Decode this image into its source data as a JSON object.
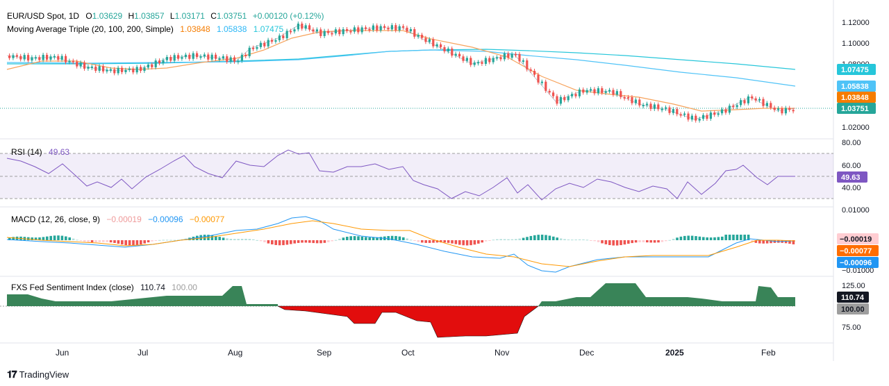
{
  "header": {
    "symbol": "EUR/USD Spot, 1D",
    "ohlc": {
      "o_label": "O",
      "o": "1.03629",
      "h_label": "H",
      "h": "1.03857",
      "l_label": "L",
      "l": "1.03171",
      "c_label": "C",
      "c": "1.03751",
      "change": "+0.00120 (+0.12%)"
    },
    "ma_label": "Moving Average Triple (20, 100, 200, Simple)",
    "ma_values": [
      "1.03848",
      "1.05838",
      "1.07475"
    ]
  },
  "rsi": {
    "label": "RSI (14)",
    "value": "49.63"
  },
  "macd": {
    "label": "MACD (12, 26, close, 9)",
    "values": [
      "−0.00019",
      "−0.00096",
      "−0.00077"
    ]
  },
  "fxs": {
    "label": "FXS Fed Sentiment Index (close)",
    "value": "110.74",
    "ref": "100.00"
  },
  "price_axis": [
    "1.12000",
    "1.10000",
    "1.08000",
    "1.02000"
  ],
  "rsi_axis": [
    "80.00",
    "60.00",
    "40.00"
  ],
  "macd_axis": [
    "0.01000",
    "−0.01000"
  ],
  "fxs_axis": [
    "125.00",
    "75.00"
  ],
  "badges": {
    "ma200": "1.07475",
    "ma100": "1.05838",
    "ma20": "1.03848",
    "price": "1.03751",
    "rsi": "49.63",
    "macd_hist": "−0.00019",
    "macd_signal": "−0.00077",
    "macd_line": "−0.00096",
    "fxs": "110.74",
    "fxs_ref": "100.00"
  },
  "x_labels": [
    "Jun",
    "Jul",
    "Aug",
    "Sep",
    "Oct",
    "Nov",
    "Dec",
    "2025",
    "Jan",
    "Feb"
  ],
  "footer": {
    "brand": "TradingView"
  },
  "colors": {
    "up": "#26a69a",
    "down": "#ef5350",
    "ma20": "#f7a35c",
    "ma100": "#4fc3f7",
    "ma200": "#26c6da",
    "rsi": "#7e57c2",
    "macd": "#2196f3",
    "signal": "#ff9800",
    "fxs_up": "#2e7d4f",
    "fxs_down": "#e00000"
  },
  "chart_data": [
    {
      "type": "line",
      "title": "EUR/USD Spot, 1D",
      "x": [
        "Jun",
        "Jul",
        "Aug",
        "Sep",
        "Oct",
        "Nov",
        "Dec",
        "2025",
        "Feb"
      ],
      "series": [
        {
          "name": "Close",
          "values": [
            1.086,
            1.072,
            1.079,
            1.108,
            1.115,
            1.082,
            1.052,
            1.035,
            1.0375
          ]
        },
        {
          "name": "MA 20",
          "values": [
            1.08,
            1.078,
            1.076,
            1.102,
            1.112,
            1.088,
            1.058,
            1.04,
            1.0385
          ]
        },
        {
          "name": "MA 100",
          "values": [
            1.082,
            1.08,
            1.083,
            1.088,
            1.092,
            1.09,
            1.076,
            1.064,
            1.0584
          ]
        },
        {
          "name": "MA 200",
          "values": [
            1.08,
            1.08,
            1.082,
            1.085,
            1.086,
            1.088,
            1.086,
            1.08,
            1.0748
          ]
        }
      ],
      "ylim": [
        1.015,
        1.125
      ]
    },
    {
      "type": "line",
      "title": "RSI (14)",
      "x": [
        "Jun",
        "Jul",
        "Aug",
        "Sep",
        "Oct",
        "Nov",
        "Dec",
        "2025",
        "Feb"
      ],
      "series": [
        {
          "name": "RSI",
          "values": [
            60,
            42,
            55,
            72,
            50,
            34,
            40,
            42,
            49.63
          ]
        }
      ],
      "ylim": [
        20,
        80
      ]
    },
    {
      "type": "line",
      "title": "MACD (12, 26, close, 9)",
      "x": [
        "Jun",
        "Jul",
        "Aug",
        "Sep",
        "Oct",
        "Nov",
        "Dec",
        "2025",
        "Feb"
      ],
      "series": [
        {
          "name": "MACD",
          "values": [
            0.001,
            -0.002,
            0.001,
            0.007,
            0.004,
            -0.004,
            -0.009,
            -0.006,
            -0.00096
          ]
        },
        {
          "name": "Signal",
          "values": [
            0.0005,
            -0.0015,
            0.0005,
            0.006,
            0.005,
            -0.002,
            -0.008,
            -0.006,
            -0.00077
          ]
        }
      ]
    },
    {
      "type": "area",
      "title": "FXS Fed Sentiment Index (close)",
      "x": [
        "Jun",
        "Jul",
        "Aug",
        "Sep",
        "Oct",
        "Nov",
        "Dec",
        "2025",
        "Feb"
      ],
      "series": [
        {
          "name": "FXS",
          "values": [
            111,
            109,
            112,
            94,
            73,
            99,
            118,
            110,
            110.74
          ]
        }
      ],
      "ylim": [
        60,
        130
      ]
    }
  ]
}
